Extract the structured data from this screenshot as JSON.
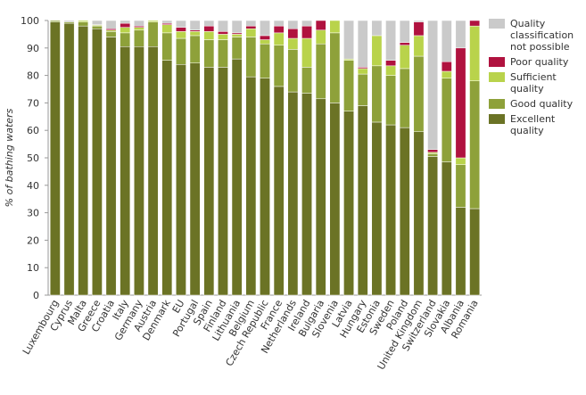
{
  "chart_data": {
    "type": "stacked_bar",
    "y_label": "% of bathing waters",
    "categories": [
      "Luxembourg",
      "Cyprus",
      "Malta",
      "Greece",
      "Croatia",
      "Italy",
      "Germany",
      "Austria",
      "Denmark",
      "EU",
      "Portugal",
      "Spain",
      "Finland",
      "Lithuania",
      "Belgium",
      "Czech Republic",
      "France",
      "Netherlands",
      "Ireland",
      "Bulgaria",
      "Slovenia",
      "Latvia",
      "Hungary",
      "Estonia",
      "Sweden",
      "Poland",
      "United Kingdom",
      "Switzerland",
      "Slovakia",
      "Albania",
      "Romania"
    ],
    "series": [
      {
        "name": "Excellent quality",
        "color": "#6b7325",
        "values": [
          99.5,
          99,
          98,
          97,
          94,
          90.5,
          90.5,
          90.5,
          85.5,
          84,
          84.5,
          83,
          83,
          86,
          79.5,
          79,
          76,
          74,
          73.5,
          71.5,
          70,
          67,
          69,
          63,
          62,
          61,
          59.5,
          50.5,
          48.5,
          32,
          31.5
        ]
      },
      {
        "name": "Good quality",
        "color": "#8ea13a",
        "values": [
          0.5,
          0.5,
          1.5,
          1,
          2,
          5,
          6,
          9,
          10,
          9.5,
          10,
          10,
          10,
          8,
          14.5,
          12.5,
          15,
          15.5,
          9.5,
          20,
          25.5,
          18.5,
          11.5,
          20.5,
          18,
          21.5,
          27.5,
          1,
          30.5,
          15.5,
          46.5
        ]
      },
      {
        "name": "Sufficient quality",
        "color": "#b9d34b",
        "values": [
          0,
          0,
          0.5,
          0.3,
          0.5,
          2,
          1,
          0.5,
          3,
          2.5,
          1.5,
          3,
          2,
          1,
          3,
          1.5,
          4.5,
          4,
          10.5,
          5,
          4.5,
          0.5,
          2,
          11,
          3.5,
          8.5,
          7.5,
          0.5,
          2.5,
          2.5,
          20
        ]
      },
      {
        "name": "Poor quality",
        "color": "#b0123f",
        "values": [
          0,
          0,
          0,
          0.2,
          0.5,
          1.5,
          0.5,
          0,
          0.5,
          1.5,
          0.5,
          2,
          1,
          0.5,
          1,
          1.5,
          2.5,
          3.5,
          4.5,
          3.5,
          0,
          0,
          0.5,
          0,
          2,
          1,
          5,
          1,
          3.5,
          40,
          2
        ]
      },
      {
        "name": "Quality classification not possible",
        "color": "#cacaca",
        "values": [
          0,
          0.5,
          0,
          1.5,
          3,
          1,
          2,
          0,
          1,
          2.5,
          3.5,
          2,
          4,
          4.5,
          2,
          5.5,
          2,
          3,
          2,
          0,
          0,
          14,
          17,
          5.5,
          14.5,
          8,
          0.5,
          47,
          15,
          10,
          0
        ]
      }
    ],
    "ylim": [
      0,
      100
    ],
    "yticks": [
      0,
      10,
      20,
      30,
      40,
      50,
      60,
      70,
      80,
      90,
      100
    ]
  }
}
